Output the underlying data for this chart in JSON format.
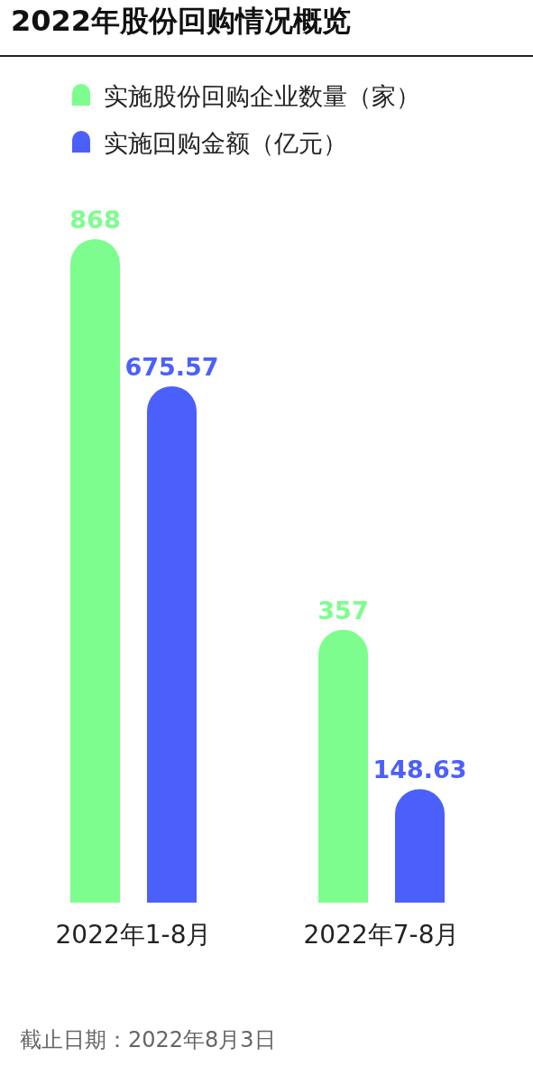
{
  "chart_data": {
    "type": "bar",
    "title": "2022年股份回购情况概览",
    "categories": [
      "2022年1-8月",
      "2022年7-8月"
    ],
    "series": [
      {
        "name": "实施股份回购企业数量（家）",
        "color": "#7dfd8e",
        "values": [
          868,
          357
        ]
      },
      {
        "name": "实施回购金额（亿元）",
        "color": "#4b60fb",
        "values": [
          675.57,
          148.63
        ]
      }
    ],
    "data_labels": true,
    "legend": "top",
    "annotations": [
      "截止日期：2022年8月3日"
    ]
  }
}
